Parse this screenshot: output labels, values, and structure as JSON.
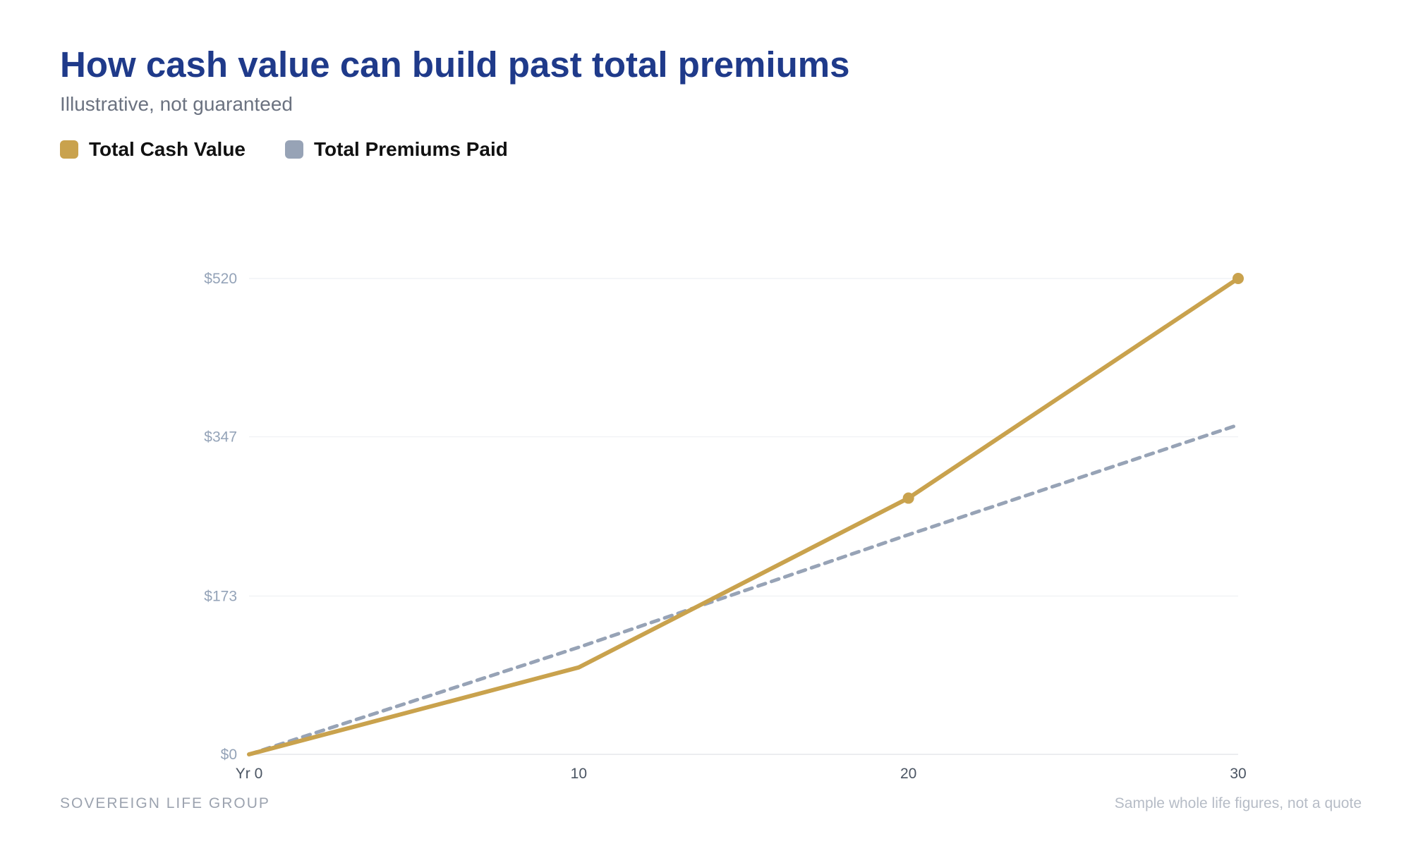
{
  "header": {
    "title": "How cash value can build past total premiums",
    "subtitle": "Illustrative, not guaranteed"
  },
  "legend": {
    "items": [
      {
        "label": "Total Cash Value",
        "color": "#c9a24d"
      },
      {
        "label": "Total Premiums Paid",
        "color": "#97a3b6"
      }
    ]
  },
  "footer": {
    "brand": "SOVEREIGN LIFE GROUP",
    "note": "Sample whole life figures, not a quote"
  },
  "chart_data": {
    "type": "line",
    "title": "How cash value can build past total premiums",
    "subtitle": "Illustrative, not guaranteed",
    "x": [
      0,
      10,
      20,
      30
    ],
    "x_tick_labels": [
      "Yr 0",
      "10",
      "20",
      "30"
    ],
    "y_ticks": [
      0,
      173,
      347,
      520
    ],
    "y_tick_labels": [
      "$0",
      "$173",
      "$347",
      "$520"
    ],
    "xlim": [
      0,
      30
    ],
    "ylim": [
      0,
      520
    ],
    "grid": true,
    "legend_position": "top-left",
    "series": [
      {
        "name": "Total Cash Value",
        "values": [
          0,
          95,
          280,
          520
        ],
        "color": "#c9a24d",
        "style": "solid",
        "markers_at": [
          20,
          30
        ]
      },
      {
        "name": "Total Premiums Paid",
        "values": [
          0,
          117,
          240,
          360
        ],
        "color": "#97a3b6",
        "style": "dashed"
      }
    ],
    "xlabel": "",
    "ylabel": ""
  }
}
